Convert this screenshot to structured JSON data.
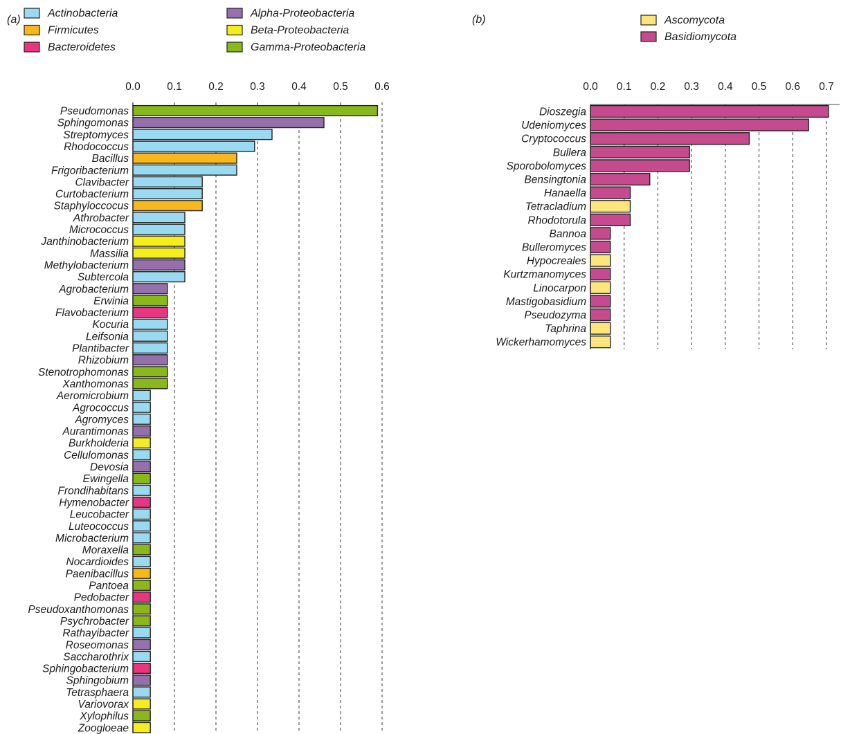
{
  "chart_data": [
    {
      "type": "bar",
      "orientation": "horizontal",
      "panel_label": "(a)",
      "xlim": [
        0,
        0.6
      ],
      "ticks": [
        "0.0",
        "0.1",
        "0.2",
        "0.3",
        "0.4",
        "0.5",
        "0.6"
      ],
      "grid": "vertical dashed",
      "legend": [
        {
          "name": "Actinobacteria",
          "color": "#99D9F2"
        },
        {
          "name": "Firmicutes",
          "color": "#F6B81C"
        },
        {
          "name": "Bacteroidetes",
          "color": "#E8357F"
        },
        {
          "name": "Alpha-Proteobacteria",
          "color": "#9670AD"
        },
        {
          "name": "Beta-Proteobacteria",
          "color": "#F5EE1E"
        },
        {
          "name": "Gamma-Proteobacteria",
          "color": "#8AB81B"
        }
      ],
      "bars": [
        {
          "label": "Pseudomonas",
          "value": 0.589,
          "group": "Gamma-Proteobacteria"
        },
        {
          "label": "Sphingomonas",
          "value": 0.46,
          "group": "Alpha-Proteobacteria"
        },
        {
          "label": "Streptomyces",
          "value": 0.335,
          "group": "Actinobacteria"
        },
        {
          "label": "Rhodococcus",
          "value": 0.293,
          "group": "Actinobacteria"
        },
        {
          "label": "Bacillus",
          "value": 0.25,
          "group": "Firmicutes"
        },
        {
          "label": "Frigoribacterium",
          "value": 0.25,
          "group": "Actinobacteria"
        },
        {
          "label": "Clavibacter",
          "value": 0.167,
          "group": "Actinobacteria"
        },
        {
          "label": "Curtobacterium",
          "value": 0.167,
          "group": "Actinobacteria"
        },
        {
          "label": "Staphyloccocus",
          "value": 0.167,
          "group": "Firmicutes"
        },
        {
          "label": "Athrobacter",
          "value": 0.125,
          "group": "Actinobacteria"
        },
        {
          "label": "Micrococcus",
          "value": 0.125,
          "group": "Actinobacteria"
        },
        {
          "label": "Janthinobacterium",
          "value": 0.125,
          "group": "Beta-Proteobacteria"
        },
        {
          "label": "Massilia",
          "value": 0.125,
          "group": "Beta-Proteobacteria"
        },
        {
          "label": "Methylobacterium",
          "value": 0.125,
          "group": "Alpha-Proteobacteria"
        },
        {
          "label": "Subtercola",
          "value": 0.125,
          "group": "Actinobacteria"
        },
        {
          "label": "Agrobacterium",
          "value": 0.083,
          "group": "Alpha-Proteobacteria"
        },
        {
          "label": "Erwinia",
          "value": 0.083,
          "group": "Gamma-Proteobacteria"
        },
        {
          "label": "Flavobacterium",
          "value": 0.083,
          "group": "Bacteroidetes"
        },
        {
          "label": "Kocuria",
          "value": 0.083,
          "group": "Actinobacteria"
        },
        {
          "label": "Leifsonia",
          "value": 0.083,
          "group": "Actinobacteria"
        },
        {
          "label": "Plantibacter",
          "value": 0.083,
          "group": "Actinobacteria"
        },
        {
          "label": "Rhizobium",
          "value": 0.083,
          "group": "Alpha-Proteobacteria"
        },
        {
          "label": "Stenotrophomonas",
          "value": 0.083,
          "group": "Gamma-Proteobacteria"
        },
        {
          "label": "Xanthomonas",
          "value": 0.083,
          "group": "Gamma-Proteobacteria"
        },
        {
          "label": "Aeromicrobium",
          "value": 0.042,
          "group": "Actinobacteria"
        },
        {
          "label": "Agrococcus",
          "value": 0.042,
          "group": "Actinobacteria"
        },
        {
          "label": "Agromyces",
          "value": 0.042,
          "group": "Actinobacteria"
        },
        {
          "label": "Aurantimonas",
          "value": 0.042,
          "group": "Alpha-Proteobacteria"
        },
        {
          "label": "Burkholderia",
          "value": 0.042,
          "group": "Beta-Proteobacteria"
        },
        {
          "label": "Cellulomonas",
          "value": 0.042,
          "group": "Actinobacteria"
        },
        {
          "label": "Devosia",
          "value": 0.042,
          "group": "Alpha-Proteobacteria"
        },
        {
          "label": "Ewingella",
          "value": 0.042,
          "group": "Gamma-Proteobacteria"
        },
        {
          "label": "Frondihabitans",
          "value": 0.042,
          "group": "Actinobacteria"
        },
        {
          "label": "Hymenobacter",
          "value": 0.042,
          "group": "Bacteroidetes"
        },
        {
          "label": "Leucobacter",
          "value": 0.042,
          "group": "Actinobacteria"
        },
        {
          "label": "Luteococcus",
          "value": 0.042,
          "group": "Actinobacteria"
        },
        {
          "label": "Microbacterium",
          "value": 0.042,
          "group": "Actinobacteria"
        },
        {
          "label": "Moraxella",
          "value": 0.042,
          "group": "Gamma-Proteobacteria"
        },
        {
          "label": "Nocardioides",
          "value": 0.042,
          "group": "Actinobacteria"
        },
        {
          "label": "Paenibacillus",
          "value": 0.042,
          "group": "Firmicutes"
        },
        {
          "label": "Pantoea",
          "value": 0.042,
          "group": "Gamma-Proteobacteria"
        },
        {
          "label": "Pedobacter",
          "value": 0.042,
          "group": "Bacteroidetes"
        },
        {
          "label": "Pseudoxanthomonas",
          "value": 0.042,
          "group": "Gamma-Proteobacteria"
        },
        {
          "label": "Psychrobacter",
          "value": 0.042,
          "group": "Gamma-Proteobacteria"
        },
        {
          "label": "Rathayibacter",
          "value": 0.042,
          "group": "Actinobacteria"
        },
        {
          "label": "Roseomonas",
          "value": 0.042,
          "group": "Alpha-Proteobacteria"
        },
        {
          "label": "Saccharothrix",
          "value": 0.042,
          "group": "Actinobacteria"
        },
        {
          "label": "Sphingobacterium",
          "value": 0.042,
          "group": "Bacteroidetes"
        },
        {
          "label": "Sphingobium",
          "value": 0.042,
          "group": "Alpha-Proteobacteria"
        },
        {
          "label": "Tetrasphaera",
          "value": 0.042,
          "group": "Actinobacteria"
        },
        {
          "label": "Variovorax",
          "value": 0.042,
          "group": "Beta-Proteobacteria"
        },
        {
          "label": "Xylophilus",
          "value": 0.042,
          "group": "Gamma-Proteobacteria"
        },
        {
          "label": "Zoogloeae",
          "value": 0.042,
          "group": "Beta-Proteobacteria"
        }
      ]
    },
    {
      "type": "bar",
      "orientation": "horizontal",
      "panel_label": "(b)",
      "xlim": [
        0,
        0.7
      ],
      "ticks": [
        "0.0",
        "0.1",
        "0.2",
        "0.3",
        "0.4",
        "0.5",
        "0.6",
        "0.7"
      ],
      "grid": "vertical dashed",
      "legend": [
        {
          "name": "Ascomycota",
          "color": "#FCE67C"
        },
        {
          "name": "Basidiomycota",
          "color": "#C54B8E"
        }
      ],
      "bars": [
        {
          "label": "Dioszegia",
          "value": 0.706,
          "group": "Basidiomycota"
        },
        {
          "label": "Udeniomyces",
          "value": 0.647,
          "group": "Basidiomycota"
        },
        {
          "label": "Cryptococcus",
          "value": 0.471,
          "group": "Basidiomycota"
        },
        {
          "label": "Bullera",
          "value": 0.294,
          "group": "Basidiomycota"
        },
        {
          "label": "Sporobolomyces",
          "value": 0.294,
          "group": "Basidiomycota"
        },
        {
          "label": "Bensingtonia",
          "value": 0.176,
          "group": "Basidiomycota"
        },
        {
          "label": "Hanaella",
          "value": 0.118,
          "group": "Basidiomycota"
        },
        {
          "label": "Tetracladium",
          "value": 0.118,
          "group": "Ascomycota"
        },
        {
          "label": "Rhodotorula",
          "value": 0.118,
          "group": "Basidiomycota"
        },
        {
          "label": "Bannoa",
          "value": 0.059,
          "group": "Basidiomycota"
        },
        {
          "label": "Bulleromyces",
          "value": 0.059,
          "group": "Basidiomycota"
        },
        {
          "label": "Hypocreales",
          "value": 0.059,
          "group": "Ascomycota"
        },
        {
          "label": "Kurtzmanomyces",
          "value": 0.059,
          "group": "Basidiomycota"
        },
        {
          "label": "Linocarpon",
          "value": 0.059,
          "group": "Ascomycota"
        },
        {
          "label": "Mastigobasidium",
          "value": 0.059,
          "group": "Basidiomycota"
        },
        {
          "label": "Pseudozyma",
          "value": 0.059,
          "group": "Basidiomycota"
        },
        {
          "label": "Taphrina",
          "value": 0.059,
          "group": "Ascomycota"
        },
        {
          "label": "Wickerhamomyces",
          "value": 0.059,
          "group": "Ascomycota"
        }
      ]
    }
  ]
}
